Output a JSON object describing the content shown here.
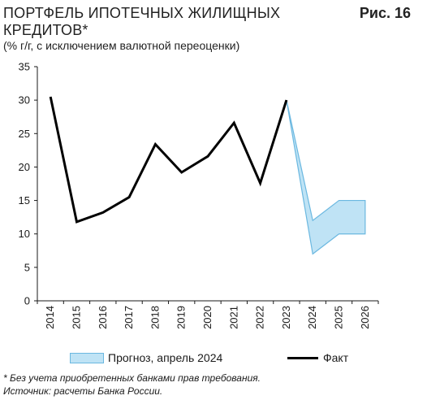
{
  "header": {
    "title": "ПОРТФЕЛЬ ИПОТЕЧНЫХ ЖИЛИЩНЫХ КРЕДИТОВ*",
    "subtitle": "(% г/г, с исключением валютной переоценки)",
    "figure_label": "Рис. 16"
  },
  "chart_data": {
    "type": "line",
    "x": [
      "2014",
      "2015",
      "2016",
      "2017",
      "2018",
      "2019",
      "2020",
      "2021",
      "2022",
      "2023",
      "2024",
      "2025",
      "2026"
    ],
    "ylim": [
      0,
      35
    ],
    "yticks": [
      0,
      5,
      10,
      15,
      20,
      25,
      30,
      35
    ],
    "grid": false,
    "legend_placement": "bottom",
    "series": [
      {
        "name": "Факт",
        "color": "#000000",
        "x": [
          "2014",
          "2015",
          "2016",
          "2017",
          "2018",
          "2019",
          "2020",
          "2021",
          "2022",
          "2023"
        ],
        "values": [
          30.5,
          11.8,
          13.2,
          15.5,
          23.4,
          19.2,
          21.6,
          26.6,
          17.6,
          30.0
        ]
      }
    ],
    "forecast_band": {
      "name": "Прогноз, апрель 2024",
      "fill": "#bfe3f5",
      "stroke": "#6bb8e0",
      "x": [
        "2023",
        "2024",
        "2025",
        "2026"
      ],
      "upper": [
        30.0,
        12.0,
        15.0,
        15.0
      ],
      "lower": [
        30.0,
        7.0,
        10.0,
        10.0
      ]
    }
  },
  "legend": {
    "forecast_label": "Прогноз, апрель 2024",
    "fact_label": "Факт"
  },
  "notes": {
    "footnote": "* Без учета приобретенных банками прав требования.",
    "source": "Источник: расчеты Банка России."
  }
}
